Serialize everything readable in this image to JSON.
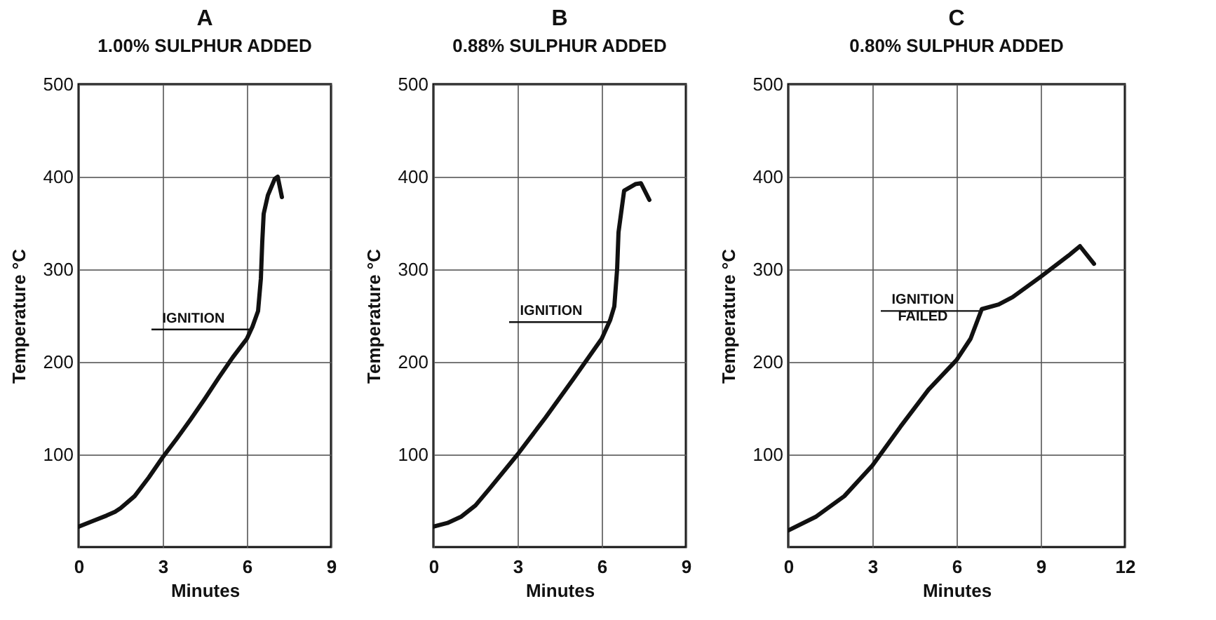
{
  "chart_data": [
    {
      "type": "line",
      "title": "A",
      "subtitle": "1.00% SULPHUR ADDED",
      "xlabel": "Minutes",
      "ylabel": "Temperature °C",
      "xlim": [
        0,
        9
      ],
      "xticks": [
        0,
        3,
        6,
        9
      ],
      "ylim": [
        0,
        500
      ],
      "yticks": [
        100,
        200,
        300,
        400,
        500
      ],
      "grid": true,
      "x": [
        0,
        0.5,
        1,
        1.3,
        1.5,
        2,
        2.5,
        3,
        3.5,
        4,
        4.5,
        5,
        5.5,
        6,
        6.2,
        6.4,
        6.5,
        6.55,
        6.6,
        6.75,
        7,
        7.1,
        7.25
      ],
      "series": [
        {
          "color": "#111111",
          "values": [
            22,
            28,
            34,
            38,
            42,
            55,
            75,
            97,
            117,
            138,
            160,
            183,
            205,
            225,
            238,
            255,
            290,
            330,
            360,
            380,
            398,
            400,
            378
          ]
        }
      ],
      "annotations": [
        {
          "text": "IGNITION",
          "x": 6.1,
          "y": 235
        }
      ]
    },
    {
      "type": "line",
      "title": "B",
      "subtitle": "0.88% SULPHUR ADDED",
      "xlabel": "Minutes",
      "ylabel": "Temperature °C",
      "xlim": [
        0,
        9
      ],
      "xticks": [
        0,
        3,
        6,
        9
      ],
      "ylim": [
        0,
        500
      ],
      "yticks": [
        100,
        200,
        300,
        400,
        500
      ],
      "grid": true,
      "x": [
        0,
        0.5,
        1,
        1.5,
        2,
        3,
        4,
        5,
        6,
        6.3,
        6.45,
        6.55,
        6.6,
        6.8,
        7.2,
        7.4,
        7.7
      ],
      "series": [
        {
          "color": "#111111",
          "values": [
            22,
            26,
            33,
            45,
            63,
            100,
            140,
            182,
            225,
            245,
            260,
            300,
            340,
            385,
            392,
            393,
            375
          ]
        }
      ],
      "annotations": [
        {
          "text": "IGNITION",
          "x": 6.2,
          "y": 243
        }
      ]
    },
    {
      "type": "line",
      "title": "C",
      "subtitle": "0.80% SULPHUR ADDED",
      "xlabel": "Minutes",
      "ylabel": "Temperature °C",
      "xlim": [
        0,
        12
      ],
      "xticks": [
        0,
        3,
        6,
        9,
        12
      ],
      "ylim": [
        0,
        500
      ],
      "yticks": [
        100,
        200,
        300,
        400,
        500
      ],
      "grid": true,
      "x": [
        0,
        1,
        2,
        3,
        4,
        5,
        6,
        6.5,
        6.9,
        7.5,
        8,
        9,
        10,
        10.4,
        10.9
      ],
      "series": [
        {
          "color": "#111111",
          "values": [
            18,
            33,
            55,
            88,
            130,
            170,
            202,
            225,
            257,
            262,
            270,
            292,
            315,
            325,
            306
          ]
        }
      ],
      "annotations": [
        {
          "text": "IGNITION\nFAILED",
          "x": 6.8,
          "y": 255
        }
      ]
    }
  ]
}
